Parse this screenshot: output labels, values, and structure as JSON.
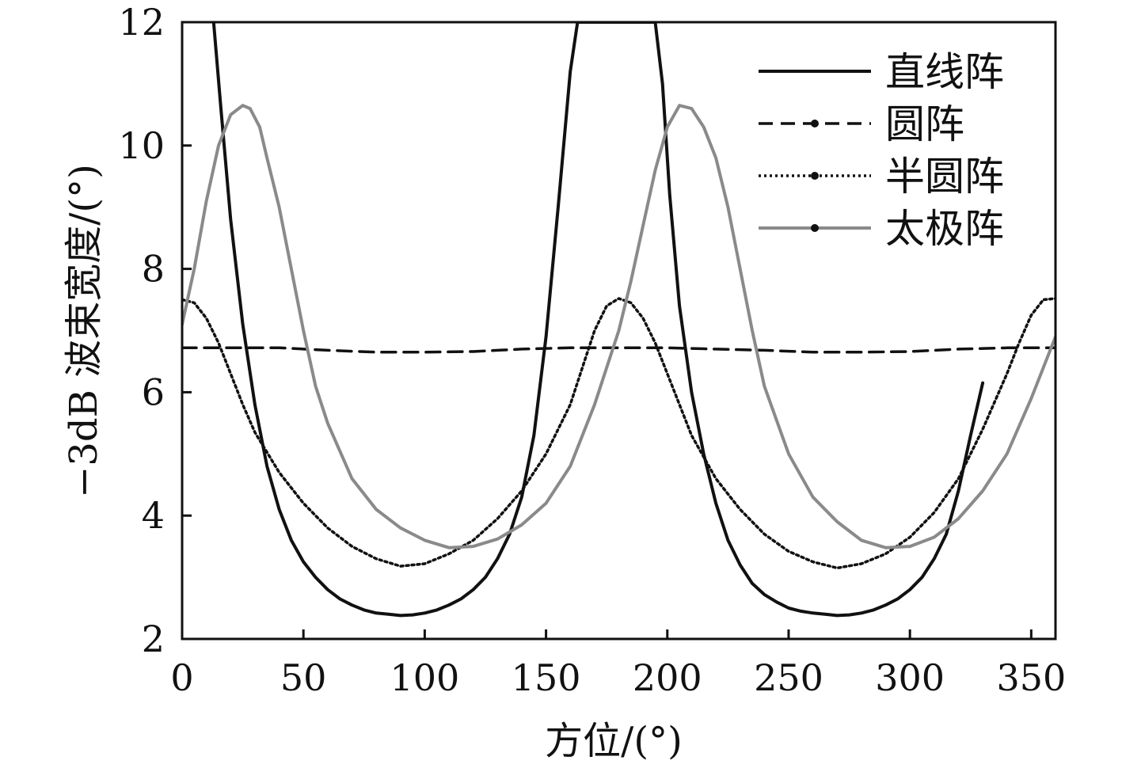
{
  "chart_data": {
    "type": "line",
    "title": "",
    "xlabel": "方位/(°)",
    "ylabel": "−3dB 波束宽度/(°)",
    "xlim": [
      0,
      360
    ],
    "ylim": [
      2,
      12
    ],
    "x_ticks": [
      0,
      50,
      100,
      150,
      200,
      250,
      300,
      350
    ],
    "y_ticks": [
      2,
      4,
      6,
      8,
      10,
      12
    ],
    "grid": false,
    "legend_position": "top-right",
    "series": [
      {
        "name": "直线阵",
        "style": "solid",
        "color": "#111111",
        "x": [
          13,
          16,
          20,
          25,
          30,
          35,
          40,
          45,
          50,
          55,
          60,
          65,
          70,
          75,
          80,
          85,
          90,
          95,
          100,
          105,
          110,
          115,
          120,
          125,
          130,
          135,
          140,
          145,
          150,
          155,
          160,
          163,
          166,
          195,
          198,
          201,
          205,
          210,
          215,
          220,
          225,
          230,
          235,
          240,
          245,
          250,
          255,
          260,
          265,
          270,
          275,
          280,
          285,
          290,
          295,
          300,
          305,
          310,
          315,
          320,
          325,
          330
        ],
        "y": [
          12.0,
          10.6,
          8.8,
          7.1,
          5.8,
          4.8,
          4.1,
          3.6,
          3.25,
          3.0,
          2.8,
          2.65,
          2.55,
          2.47,
          2.42,
          2.4,
          2.38,
          2.39,
          2.42,
          2.47,
          2.55,
          2.65,
          2.8,
          3.0,
          3.3,
          3.7,
          4.3,
          5.3,
          6.9,
          9.0,
          11.2,
          12.0,
          12.0,
          12.0,
          11.0,
          9.2,
          7.4,
          6.0,
          5.0,
          4.2,
          3.6,
          3.2,
          2.9,
          2.72,
          2.6,
          2.5,
          2.45,
          2.42,
          2.4,
          2.38,
          2.39,
          2.42,
          2.47,
          2.55,
          2.65,
          2.8,
          3.0,
          3.3,
          3.7,
          4.4,
          5.3,
          6.15
        ]
      },
      {
        "name": "圆阵",
        "style": "dashed",
        "color": "#111111",
        "x": [
          0,
          20,
          40,
          60,
          80,
          100,
          120,
          140,
          160,
          180,
          200,
          220,
          240,
          260,
          280,
          300,
          320,
          340,
          360
        ],
        "y": [
          6.72,
          6.72,
          6.72,
          6.68,
          6.65,
          6.65,
          6.66,
          6.7,
          6.72,
          6.72,
          6.72,
          6.7,
          6.68,
          6.65,
          6.65,
          6.66,
          6.7,
          6.72,
          6.72
        ]
      },
      {
        "name": "半圆阵",
        "style": "dotted",
        "color": "#111111",
        "x": [
          0,
          5,
          10,
          15,
          20,
          25,
          30,
          40,
          50,
          60,
          70,
          80,
          90,
          100,
          110,
          120,
          130,
          140,
          150,
          160,
          165,
          170,
          175,
          180,
          185,
          190,
          195,
          200,
          210,
          220,
          230,
          240,
          250,
          260,
          270,
          280,
          290,
          300,
          310,
          320,
          330,
          340,
          345,
          350,
          355,
          360
        ],
        "y": [
          7.5,
          7.45,
          7.2,
          6.8,
          6.3,
          5.8,
          5.35,
          4.7,
          4.2,
          3.8,
          3.5,
          3.3,
          3.18,
          3.22,
          3.38,
          3.6,
          3.95,
          4.4,
          5.0,
          5.8,
          6.4,
          7.0,
          7.4,
          7.52,
          7.45,
          7.2,
          6.8,
          6.3,
          5.3,
          4.6,
          4.1,
          3.7,
          3.42,
          3.25,
          3.15,
          3.22,
          3.38,
          3.65,
          4.05,
          4.6,
          5.4,
          6.3,
          6.8,
          7.25,
          7.5,
          7.52
        ]
      },
      {
        "name": "太极阵",
        "style": "gray",
        "color": "#8a8a8a",
        "x": [
          0,
          5,
          10,
          15,
          20,
          25,
          28,
          32,
          35,
          40,
          45,
          50,
          55,
          60,
          70,
          80,
          90,
          100,
          110,
          120,
          130,
          140,
          150,
          160,
          170,
          180,
          185,
          190,
          195,
          200,
          205,
          210,
          215,
          220,
          225,
          230,
          235,
          240,
          250,
          260,
          270,
          280,
          290,
          300,
          310,
          320,
          330,
          340,
          350,
          360
        ],
        "y": [
          7.1,
          8.0,
          9.1,
          10.0,
          10.5,
          10.65,
          10.6,
          10.3,
          9.8,
          9.0,
          8.0,
          7.0,
          6.1,
          5.5,
          4.6,
          4.1,
          3.8,
          3.6,
          3.48,
          3.5,
          3.62,
          3.85,
          4.2,
          4.8,
          5.8,
          7.0,
          7.8,
          8.7,
          9.6,
          10.3,
          10.65,
          10.6,
          10.3,
          9.8,
          9.0,
          8.0,
          7.0,
          6.1,
          5.0,
          4.3,
          3.9,
          3.6,
          3.48,
          3.5,
          3.65,
          3.95,
          4.4,
          5.0,
          5.9,
          6.9
        ]
      }
    ]
  }
}
